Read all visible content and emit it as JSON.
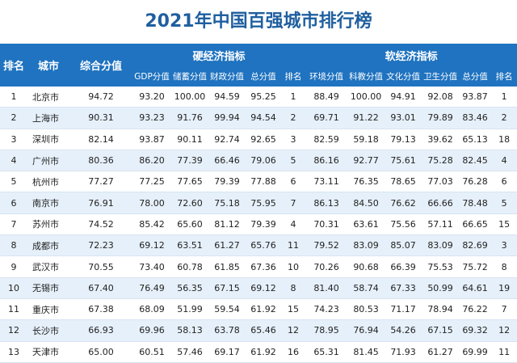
{
  "title": "2021年中国百强城市排行榜",
  "headers": {
    "rank": "排名",
    "city": "城市",
    "composite": "综合分值",
    "hard_group": "硬经济指标",
    "soft_group": "软经济指标",
    "hard_sub": [
      "GDP分值",
      "储蓄分值",
      "财政分值",
      "总分值",
      "排名"
    ],
    "soft_sub": [
      "环境分值",
      "科教分值",
      "文化分值",
      "卫生分值",
      "总分值",
      "排名"
    ]
  },
  "rows": [
    [
      "1",
      "北京市",
      "94.72",
      "93.20",
      "100.00",
      "94.59",
      "95.25",
      "1",
      "88.49",
      "100.00",
      "94.91",
      "92.08",
      "93.87",
      "1"
    ],
    [
      "2",
      "上海市",
      "90.31",
      "93.23",
      "91.76",
      "99.94",
      "94.54",
      "2",
      "69.71",
      "91.22",
      "93.01",
      "79.89",
      "83.46",
      "2"
    ],
    [
      "3",
      "深圳市",
      "82.14",
      "93.87",
      "90.11",
      "92.74",
      "92.65",
      "3",
      "82.59",
      "59.18",
      "79.13",
      "39.62",
      "65.13",
      "18"
    ],
    [
      "4",
      "广州市",
      "80.36",
      "86.20",
      "77.39",
      "66.46",
      "79.06",
      "5",
      "86.16",
      "92.77",
      "75.61",
      "75.28",
      "82.45",
      "4"
    ],
    [
      "5",
      "杭州市",
      "77.27",
      "77.25",
      "77.65",
      "79.39",
      "77.88",
      "6",
      "73.11",
      "76.35",
      "78.65",
      "77.03",
      "76.28",
      "6"
    ],
    [
      "6",
      "南京市",
      "76.91",
      "78.00",
      "72.60",
      "75.18",
      "75.95",
      "7",
      "86.13",
      "84.50",
      "76.62",
      "66.66",
      "78.48",
      "5"
    ],
    [
      "7",
      "苏州市",
      "74.52",
      "85.42",
      "65.60",
      "81.12",
      "79.39",
      "4",
      "70.31",
      "63.61",
      "75.56",
      "57.11",
      "66.65",
      "15"
    ],
    [
      "8",
      "成都市",
      "72.23",
      "69.12",
      "63.51",
      "61.27",
      "65.76",
      "11",
      "79.52",
      "83.09",
      "85.07",
      "83.09",
      "82.69",
      "3"
    ],
    [
      "9",
      "武汉市",
      "70.55",
      "73.40",
      "60.78",
      "61.85",
      "67.36",
      "10",
      "70.26",
      "90.68",
      "66.39",
      "75.53",
      "75.72",
      "8"
    ],
    [
      "10",
      "无锡市",
      "67.40",
      "76.49",
      "56.35",
      "67.15",
      "69.12",
      "8",
      "81.40",
      "58.74",
      "67.33",
      "50.99",
      "64.61",
      "19"
    ],
    [
      "11",
      "重庆市",
      "67.38",
      "68.09",
      "51.99",
      "59.54",
      "61.92",
      "15",
      "74.23",
      "80.53",
      "71.17",
      "78.94",
      "76.22",
      "7"
    ],
    [
      "12",
      "长沙市",
      "66.93",
      "69.96",
      "58.13",
      "63.78",
      "65.46",
      "12",
      "78.95",
      "76.94",
      "54.26",
      "67.15",
      "69.32",
      "12"
    ],
    [
      "13",
      "天津市",
      "65.00",
      "60.51",
      "57.46",
      "69.17",
      "61.92",
      "16",
      "65.31",
      "81.45",
      "71.93",
      "61.27",
      "69.99",
      "11"
    ]
  ]
}
